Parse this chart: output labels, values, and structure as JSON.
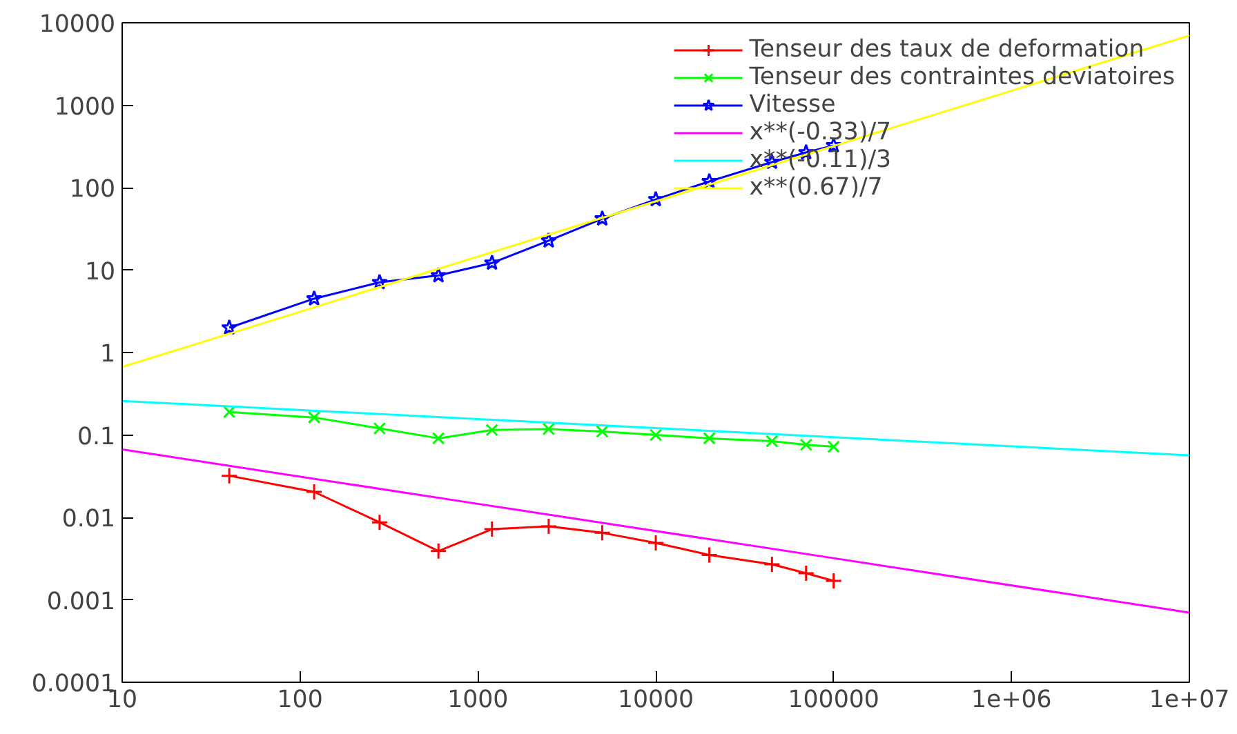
{
  "chart_data": {
    "type": "line",
    "log": "xy",
    "xlim": [
      10,
      10000000
    ],
    "ylim": [
      0.0001,
      10000
    ],
    "xticks": [
      10,
      100,
      1000,
      10000,
      100000,
      {
        "value": 1000000,
        "label": "1e+06"
      },
      {
        "value": 10000000,
        "label": "1e+07"
      }
    ],
    "yticks": [
      0.0001,
      0.001,
      0.01,
      0.1,
      1,
      10,
      100,
      1000,
      10000
    ],
    "grid": false,
    "legend": "top right",
    "x": [
      40,
      120,
      280,
      600,
      1200,
      2500,
      5000,
      10000,
      20000,
      45000,
      70000,
      100000
    ],
    "series": [
      {
        "name": "Tenseur des taux de deformation",
        "color": "#ff0000",
        "marker": "cross",
        "values": [
          0.032,
          0.0204,
          0.0087,
          0.0039,
          0.0072,
          0.0078,
          0.0065,
          0.0049,
          0.0035,
          0.0027,
          0.0021,
          0.0017
        ]
      },
      {
        "name": "Tenseur des contraintes deviatoires",
        "color": "#00ff00",
        "marker": "x",
        "values": [
          0.19,
          0.163,
          0.12,
          0.091,
          0.115,
          0.118,
          0.11,
          0.1,
          0.091,
          0.084,
          0.076,
          0.072
        ]
      },
      {
        "name": "Vitesse",
        "color": "#0000ff",
        "marker": "star",
        "values": [
          2,
          4.5,
          7.1,
          8.6,
          12.2,
          22.7,
          42,
          72,
          119,
          204,
          267,
          324
        ]
      },
      {
        "name": "x**(-0.33)/7",
        "color": "#ff00ff",
        "marker": "none",
        "x": [
          10,
          1000,
          100000,
          10000000
        ],
        "values": [
          0.0668,
          0.0146,
          0.0032,
          0.0007
        ]
      },
      {
        "name": "x**(-0.11)/3",
        "color": "#00ffff",
        "marker": "none",
        "x": [
          10,
          1000,
          100000,
          10000000
        ],
        "values": [
          0.2587,
          0.156,
          0.0939,
          0.0566
        ]
      },
      {
        "name": "x**(0.67)/7",
        "color": "#ffff00",
        "marker": "none",
        "x": [
          10,
          1000,
          100000,
          10000000
        ],
        "values": [
          0.668,
          14.6,
          320,
          6997
        ]
      }
    ]
  }
}
